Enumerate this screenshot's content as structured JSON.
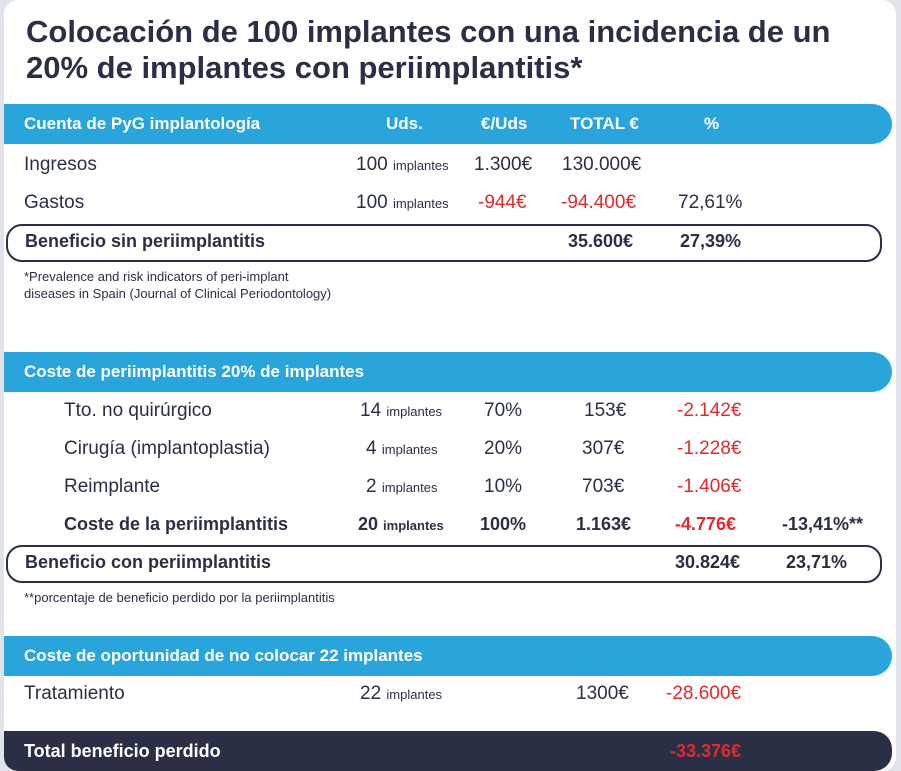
{
  "title": "Colocación de 100 implantes con una incidencia de un 20% de implantes con periimplantitis*",
  "pyg": {
    "header": {
      "label": "Cuenta de PyG implantología",
      "uds": "Uds.",
      "eur_uds": "€/Uds",
      "total": "TOTAL €",
      "pct": "%"
    },
    "rows": [
      {
        "label": "Ingresos",
        "qty": "100",
        "unit": "implantes",
        "price": "1.300€",
        "total": "130.000€",
        "pct": ""
      },
      {
        "label": "Gastos",
        "qty": "100",
        "unit": "implantes",
        "price": "-944€",
        "total": "-94.400€",
        "pct": "72,61%"
      }
    ],
    "result": {
      "label": "Beneficio sin periimplantitis",
      "total": "35.600€",
      "pct": "27,39%"
    },
    "note": [
      "*Prevalence and risk indicators of peri-implant",
      "diseases in Spain (Journal of Clinical Periodontology)"
    ]
  },
  "coste": {
    "header": "Coste de periimplantitis 20% de implantes",
    "rows": [
      {
        "label": "Tto. no quirúrgico",
        "qty": "14",
        "unit": "implantes",
        "pct": "70%",
        "price": "153€",
        "total": "-2.142€"
      },
      {
        "label": "Cirugía (implantoplastia)",
        "qty": "4",
        "unit": "implantes",
        "pct": "20%",
        "price": "307€",
        "total": "-1.228€"
      },
      {
        "label": "Reimplante",
        "qty": "2",
        "unit": "implantes",
        "pct": "10%",
        "price": "703€",
        "total": "-1.406€"
      }
    ],
    "sum": {
      "label": "Coste de la periimplantitis",
      "qty": "20",
      "unit": "implantes",
      "pct": "100%",
      "price": "1.163€",
      "total": "-4.776€",
      "lost": "-13,41%**"
    },
    "result": {
      "label": "Beneficio con periimplantitis",
      "total": "30.824€",
      "pct": "23,71%"
    },
    "note": "**porcentaje de beneficio perdido por la periimplantitis"
  },
  "oportunidad": {
    "header": "Coste de oportunidad de no colocar 22 implantes",
    "row": {
      "label": "Tratamiento",
      "qty": "22",
      "unit": "implantes",
      "price": "1300€",
      "total": "-28.600€"
    }
  },
  "total": {
    "label": "Total beneficio perdido",
    "value": "-33.376€"
  },
  "colors": {
    "accent": "#2aa5dc",
    "dark": "#2b2f45",
    "negative": "#e02b2b"
  }
}
